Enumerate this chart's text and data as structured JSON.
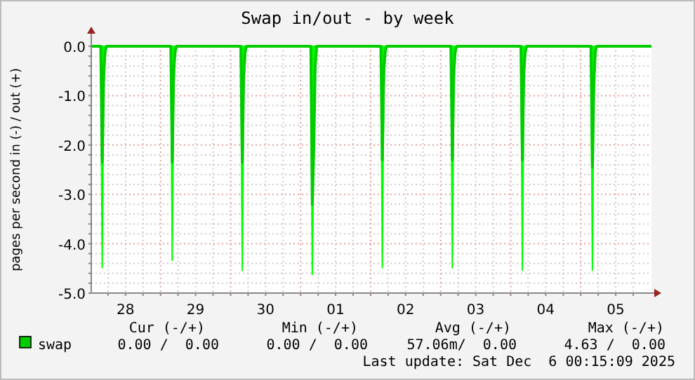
{
  "chart_data": {
    "type": "line",
    "title": "Swap in/out - by week",
    "ylabel": "pages per second in (-) / out (+)",
    "xlim": [
      "2025-11-28T00:15",
      "2025-12-06T00:15"
    ],
    "xticks": [
      {
        "value": "2025-11-28T06:00",
        "label": null
      },
      {
        "value": "2025-11-28T12:00",
        "label": "28"
      },
      {
        "value": "2025-11-28T18:00",
        "label": null
      },
      {
        "value": "2025-11-29T00:00",
        "label": null
      },
      {
        "value": "2025-11-29T06:00",
        "label": null
      },
      {
        "value": "2025-11-29T12:00",
        "label": "29"
      },
      {
        "value": "2025-11-29T18:00",
        "label": null
      },
      {
        "value": "2025-11-30T00:00",
        "label": null
      },
      {
        "value": "2025-11-30T06:00",
        "label": null
      },
      {
        "value": "2025-11-30T12:00",
        "label": "30"
      },
      {
        "value": "2025-11-30T18:00",
        "label": null
      },
      {
        "value": "2025-12-01T00:00",
        "label": null
      },
      {
        "value": "2025-12-01T06:00",
        "label": null
      },
      {
        "value": "2025-12-01T12:00",
        "label": "01"
      },
      {
        "value": "2025-12-01T18:00",
        "label": null
      },
      {
        "value": "2025-12-02T00:00",
        "label": null
      },
      {
        "value": "2025-12-02T06:00",
        "label": null
      },
      {
        "value": "2025-12-02T12:00",
        "label": "02"
      },
      {
        "value": "2025-12-02T18:00",
        "label": null
      },
      {
        "value": "2025-12-03T00:00",
        "label": null
      },
      {
        "value": "2025-12-03T06:00",
        "label": null
      },
      {
        "value": "2025-12-03T12:00",
        "label": "03"
      },
      {
        "value": "2025-12-03T18:00",
        "label": null
      },
      {
        "value": "2025-12-04T00:00",
        "label": null
      },
      {
        "value": "2025-12-04T06:00",
        "label": null
      },
      {
        "value": "2025-12-04T12:00",
        "label": "04"
      },
      {
        "value": "2025-12-04T18:00",
        "label": null
      },
      {
        "value": "2025-12-05T00:00",
        "label": null
      },
      {
        "value": "2025-12-05T06:00",
        "label": null
      },
      {
        "value": "2025-12-05T12:00",
        "label": "05"
      },
      {
        "value": "2025-12-05T18:00",
        "label": null
      }
    ],
    "ylim": [
      -5,
      0
    ],
    "yticks": [
      {
        "value": 0,
        "label": "0.0"
      },
      {
        "value": -0.2,
        "label": null
      },
      {
        "value": -0.4,
        "label": null
      },
      {
        "value": -0.6,
        "label": null
      },
      {
        "value": -0.8,
        "label": null
      },
      {
        "value": -1,
        "label": "-1.0"
      },
      {
        "value": -1.2,
        "label": null
      },
      {
        "value": -1.4,
        "label": null
      },
      {
        "value": -1.6,
        "label": null
      },
      {
        "value": -1.8,
        "label": null
      },
      {
        "value": -2,
        "label": "-2.0"
      },
      {
        "value": -2.2,
        "label": null
      },
      {
        "value": -2.4,
        "label": null
      },
      {
        "value": -2.6,
        "label": null
      },
      {
        "value": -2.8,
        "label": null
      },
      {
        "value": -3,
        "label": "-3.0"
      },
      {
        "value": -3.2,
        "label": null
      },
      {
        "value": -3.4,
        "label": null
      },
      {
        "value": -3.6,
        "label": null
      },
      {
        "value": -3.8,
        "label": null
      },
      {
        "value": -4,
        "label": "-4.0"
      },
      {
        "value": -4.2,
        "label": null
      },
      {
        "value": -4.4,
        "label": null
      },
      {
        "value": -4.6,
        "label": null
      },
      {
        "value": -4.8,
        "label": null
      },
      {
        "value": -5,
        "label": "-5.0"
      }
    ],
    "grid": true,
    "legend": "bottom left",
    "marker": "none",
    "line_style": "solid",
    "series": [
      {
        "name": "swap",
        "color": "#00cc00",
        "x": [
          "2025-11-28T00:15",
          "2025-11-28T03:30",
          "2025-11-28T04:00",
          "2025-11-28T04:30",
          "2025-11-28T05:00",
          "2025-11-28T05:30",
          "2025-11-29T03:30",
          "2025-11-29T04:00",
          "2025-11-29T04:30",
          "2025-11-29T05:00",
          "2025-11-29T05:30",
          "2025-11-30T03:30",
          "2025-11-30T04:00",
          "2025-11-30T04:30",
          "2025-11-30T05:00",
          "2025-11-30T05:30",
          "2025-12-01T03:30",
          "2025-12-01T04:00",
          "2025-12-01T04:30",
          "2025-12-01T05:00",
          "2025-12-01T05:30",
          "2025-12-02T03:30",
          "2025-12-02T04:00",
          "2025-12-02T04:30",
          "2025-12-02T05:00",
          "2025-12-02T05:30",
          "2025-12-03T03:30",
          "2025-12-03T04:00",
          "2025-12-03T04:30",
          "2025-12-03T05:00",
          "2025-12-03T05:30",
          "2025-12-04T03:30",
          "2025-12-04T04:00",
          "2025-12-04T04:30",
          "2025-12-04T05:00",
          "2025-12-04T05:30",
          "2025-12-05T03:30",
          "2025-12-05T04:00",
          "2025-12-05T04:30",
          "2025-12-05T05:00",
          "2025-12-05T05:30",
          "2025-12-06T00:15"
        ],
        "values": [
          0,
          0,
          -2.35,
          -0.6,
          -0.1,
          0,
          0,
          -2.35,
          -0.5,
          -0.1,
          0,
          0,
          -2.35,
          -0.6,
          -0.1,
          0,
          0,
          -3.2,
          -2.1,
          -0.4,
          0,
          0,
          -2.3,
          -0.5,
          -0.1,
          0,
          0,
          -2.3,
          -0.5,
          -0.1,
          0,
          0,
          -2.3,
          -0.5,
          -0.1,
          0,
          0,
          -2.45,
          -0.8,
          -0.1,
          0,
          0
        ],
        "lower": [
          0,
          0,
          -4.5,
          -0.9,
          -0.2,
          0,
          0,
          -4.35,
          -0.9,
          -0.2,
          0,
          0,
          -4.55,
          -0.9,
          -0.2,
          0,
          0,
          -4.63,
          -2.1,
          -0.4,
          0,
          0,
          -4.5,
          -0.9,
          -0.2,
          0,
          0,
          -4.5,
          -0.9,
          -0.2,
          0,
          0,
          -4.55,
          -0.9,
          -0.2,
          0,
          0,
          -4.55,
          -0.9,
          -0.2,
          0,
          0
        ],
        "upper": [
          0,
          0,
          0,
          0,
          0,
          0,
          0,
          0,
          0,
          0,
          0,
          0,
          0,
          0,
          0,
          0,
          0,
          0,
          0,
          0,
          0,
          0,
          0,
          0,
          0,
          0,
          0,
          0,
          0,
          0,
          0,
          0,
          0,
          0,
          0,
          0,
          0,
          0,
          0,
          0,
          0,
          0
        ]
      }
    ],
    "annotations": [
      "Cur (-/+)",
      "Min (-/+)",
      "Avg (-/+)",
      "Max (-/+)",
      "0.00 /  0.00",
      "0.00 /  0.00",
      "57.06m/  0.00",
      "4.63 /  0.00",
      "Last update: Sat Dec  6 00:15:09 2025"
    ]
  }
}
